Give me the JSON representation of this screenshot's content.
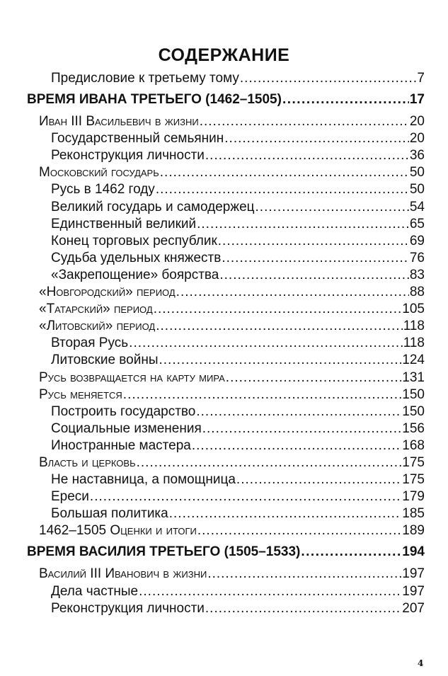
{
  "title": "СОДЕРЖАНИЕ",
  "entries": [
    {
      "level": 2,
      "label": "Предисловие к третьему тому",
      "page": "7"
    },
    {
      "level": 0,
      "label": "ВРЕМЯ ИВАНА ТРЕТЬЕГО (1462–1505)",
      "page": "17"
    },
    {
      "level": 1,
      "label": "Иван III Васильевич в жизни",
      "page": "20"
    },
    {
      "level": 2,
      "label": "Государственный семьянин",
      "page": "20"
    },
    {
      "level": 2,
      "label": "Реконструкция личности",
      "page": "36"
    },
    {
      "level": 1,
      "label": "Московский государь",
      "page": "50"
    },
    {
      "level": 2,
      "label": "Русь в 1462 году",
      "page": "50"
    },
    {
      "level": 2,
      "label": "Великий государь и самодержец",
      "page": "54"
    },
    {
      "level": 2,
      "label": "Единственный великий",
      "page": "65"
    },
    {
      "level": 2,
      "label": "Конец торговых республик",
      "page": "69"
    },
    {
      "level": 2,
      "label": "Судьба удельных княжеств",
      "page": "76"
    },
    {
      "level": 2,
      "label": "«Закрепощение» боярства",
      "page": "83"
    },
    {
      "level": 1,
      "label": "«Новгородский» период",
      "page": "88"
    },
    {
      "level": 1,
      "label": "«Татарский» период",
      "page": "105"
    },
    {
      "level": 1,
      "label": "«Литовский» период",
      "page": "118"
    },
    {
      "level": 2,
      "label": "Вторая Русь",
      "page": "118"
    },
    {
      "level": 2,
      "label": "Литовские войны",
      "page": "124"
    },
    {
      "level": 1,
      "label": "Русь возвращается на карту мира",
      "page": "131"
    },
    {
      "level": 1,
      "label": "Русь меняется",
      "page": "150"
    },
    {
      "level": 2,
      "label": "Построить государство",
      "page": "150"
    },
    {
      "level": 2,
      "label": "Социальные изменения",
      "page": "156"
    },
    {
      "level": 2,
      "label": "Иностранные мастера",
      "page": "168"
    },
    {
      "level": 1,
      "label": "Власть и церковь",
      "page": "175"
    },
    {
      "level": 2,
      "label": "Не наставница, а помощница",
      "page": "175"
    },
    {
      "level": 2,
      "label": "Ереси",
      "page": "179"
    },
    {
      "level": 2,
      "label": "Большая политика",
      "page": "185"
    },
    {
      "level": 1,
      "label": "1462–1505 Оценки и итоги",
      "page": "189"
    },
    {
      "level": 0,
      "label": "ВРЕМЯ ВАСИЛИЯ ТРЕТЬЕГО (1505–1533)",
      "page": "194"
    },
    {
      "level": 1,
      "label": "Василий III Иванович в жизни",
      "page": "197"
    },
    {
      "level": 2,
      "label": "Дела частные",
      "page": "197"
    },
    {
      "level": 2,
      "label": "Реконструкция личности",
      "page": "207"
    }
  ],
  "page_number": "4"
}
